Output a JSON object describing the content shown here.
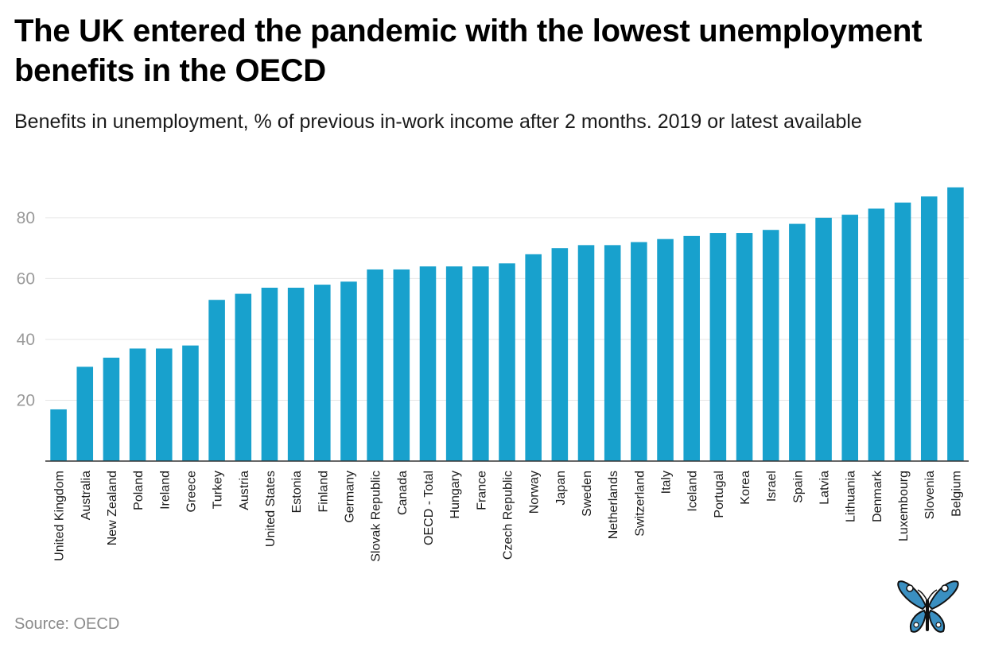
{
  "title": "The UK entered the pandemic with the lowest unemployment benefits in the OECD",
  "subtitle": "Benefits in unemployment, % of previous in-work income after 2 months. 2019 or latest available",
  "source": "Source: OECD",
  "logo": "butterfly-logo",
  "colors": {
    "bar": "#18a1cd",
    "grid": "#e6e6e6",
    "axis": "#333333",
    "logo_blue": "#3a8fc1"
  },
  "chart_data": {
    "type": "bar",
    "title": "The UK entered the pandemic with the lowest unemployment benefits in the OECD",
    "xlabel": "",
    "ylabel": "",
    "ylim": [
      0,
      92
    ],
    "yticks": [
      20,
      40,
      60,
      80
    ],
    "grid": true,
    "categories": [
      "United Kingdom",
      "Australia",
      "New Zealand",
      "Poland",
      "Ireland",
      "Greece",
      "Turkey",
      "Austria",
      "United States",
      "Estonia",
      "Finland",
      "Germany",
      "Slovak Republic",
      "Canada",
      "OECD - Total",
      "Hungary",
      "France",
      "Czech Republic",
      "Norway",
      "Japan",
      "Sweden",
      "Netherlands",
      "Switzerland",
      "Italy",
      "Iceland",
      "Portugal",
      "Korea",
      "Israel",
      "Spain",
      "Latvia",
      "Lithuania",
      "Denmark",
      "Luxembourg",
      "Slovenia",
      "Belgium"
    ],
    "values": [
      17,
      31,
      34,
      37,
      37,
      38,
      53,
      55,
      57,
      57,
      58,
      59,
      63,
      63,
      64,
      64,
      64,
      65,
      68,
      70,
      71,
      71,
      72,
      73,
      74,
      75,
      75,
      76,
      78,
      80,
      81,
      83,
      85,
      87,
      90
    ]
  }
}
